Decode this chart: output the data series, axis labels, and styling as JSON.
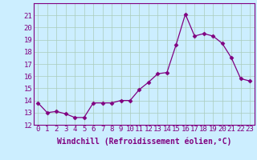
{
  "x": [
    0,
    1,
    2,
    3,
    4,
    5,
    6,
    7,
    8,
    9,
    10,
    11,
    12,
    13,
    14,
    15,
    16,
    17,
    18,
    19,
    20,
    21,
    22,
    23
  ],
  "y": [
    13.8,
    13.0,
    13.1,
    12.9,
    12.6,
    12.6,
    13.8,
    13.8,
    13.8,
    14.0,
    14.0,
    14.9,
    15.5,
    16.2,
    16.3,
    18.6,
    21.1,
    19.3,
    19.5,
    19.3,
    18.7,
    17.5,
    15.8,
    15.6
  ],
  "line_color": "#800080",
  "marker": "D",
  "marker_size": 2.5,
  "bg_color": "#cceeff",
  "grid_color": "#aaccbb",
  "xlabel": "Windchill (Refroidissement éolien,°C)",
  "xlabel_fontsize": 7,
  "tick_fontsize": 6.5,
  "ylim": [
    12,
    22
  ],
  "xlim": [
    -0.5,
    23.5
  ],
  "yticks": [
    12,
    13,
    14,
    15,
    16,
    17,
    18,
    19,
    20,
    21
  ],
  "xticks": [
    0,
    1,
    2,
    3,
    4,
    5,
    6,
    7,
    8,
    9,
    10,
    11,
    12,
    13,
    14,
    15,
    16,
    17,
    18,
    19,
    20,
    21,
    22,
    23
  ]
}
